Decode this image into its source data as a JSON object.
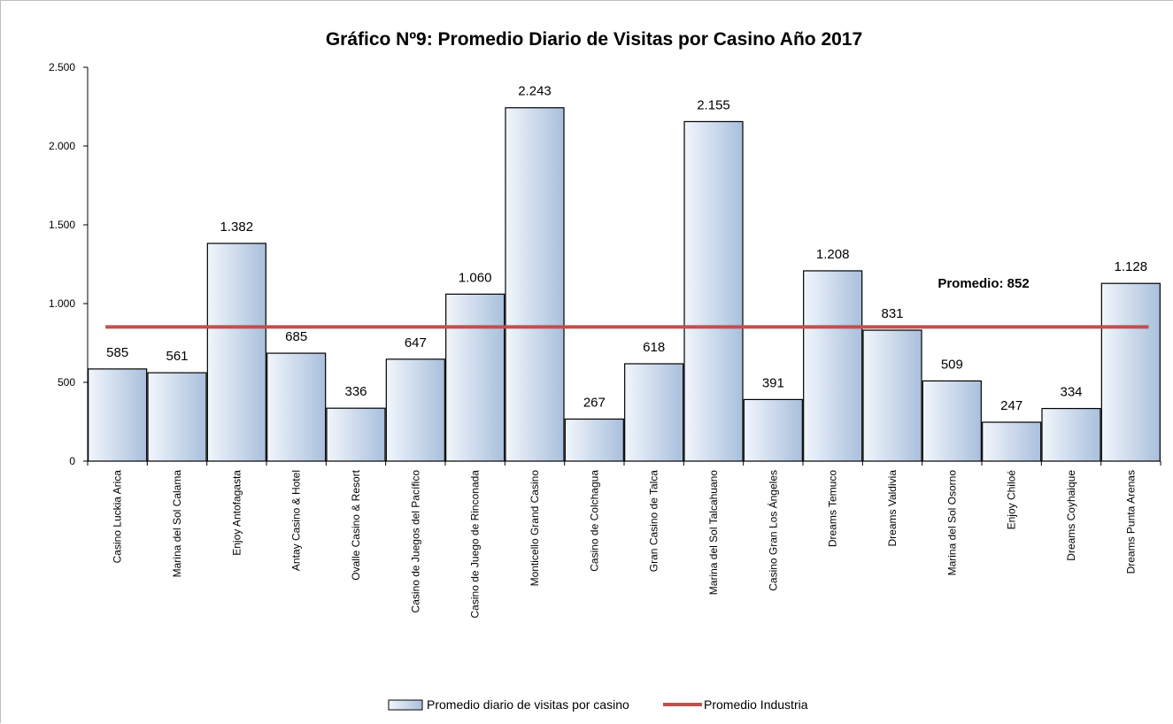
{
  "chart_data": {
    "type": "bar",
    "title": "Gráfico Nº9: Promedio Diario de Visitas por Casino Año 2017",
    "xlabel": "",
    "ylabel": "",
    "ylim": [
      0,
      2500
    ],
    "yticks": [
      0,
      500,
      1000,
      1500,
      2000,
      2500
    ],
    "ytick_labels": [
      "0",
      "500",
      "1.000",
      "1.500",
      "2.000",
      "2.500"
    ],
    "grid": false,
    "legend_position": "bottom",
    "categories": [
      "Casino Luckia Arica",
      "Marina del Sol Calama",
      "Enjoy Antofagasta",
      "Antay Casino & Hotel",
      "Ovalle Casino & Resort",
      "Casino de Juegos del Pacífico",
      "Casino de Juego de Rinconada",
      "Monticello Grand Casino",
      "Casino de Colchagua",
      "Gran Casino de Talca",
      "Marina del Sol Talcahuano",
      "Casino Gran Los Ángeles",
      "Dreams Temuco",
      "Dreams Valdivia",
      "Marina del Sol Osorno",
      "Enjoy Chiloé",
      "Dreams Coyhaique",
      "Dreams Punta Arenas"
    ],
    "series": [
      {
        "name": "Promedio diario de visitas por casino",
        "type": "bar",
        "values": [
          585,
          561,
          1382,
          685,
          336,
          647,
          1060,
          2243,
          267,
          618,
          2155,
          391,
          1208,
          831,
          509,
          247,
          334,
          1128
        ],
        "labels": [
          "585",
          "561",
          "1.382",
          "685",
          "336",
          "647",
          "1.060",
          "2.243",
          "267",
          "618",
          "2.155",
          "391",
          "1.208",
          "831",
          "509",
          "247",
          "334",
          "1.128"
        ]
      },
      {
        "name": "Promedio Industria",
        "type": "line",
        "value": 852,
        "color": "#c0504d"
      }
    ],
    "annotation": "Promedio:  852",
    "colors": {
      "bar_fill_light": "#f2f6fc",
      "bar_fill_dark": "#a9bfdc",
      "bar_stroke": "#000000",
      "line": "#c0504d"
    }
  }
}
